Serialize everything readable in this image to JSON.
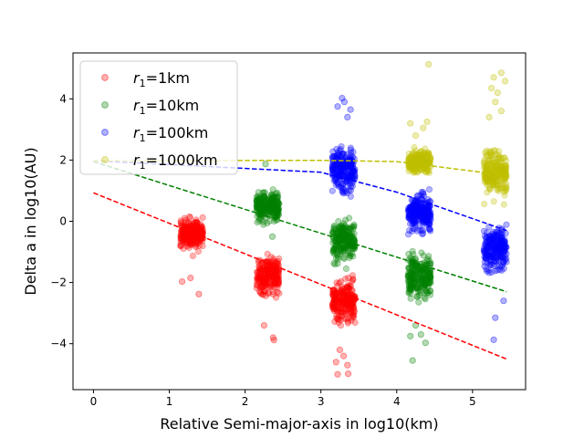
{
  "chart_data": {
    "type": "scatter",
    "title": "",
    "xlabel": "Relative Semi-major-axis in log10(km)",
    "ylabel": "Delta a in log10(AU)",
    "xlim": [
      -0.27,
      5.7
    ],
    "ylim": [
      -5.5,
      5.5
    ],
    "xticks": [
      0,
      1,
      2,
      3,
      4,
      5
    ],
    "yticks": [
      -4,
      -2,
      0,
      2,
      4
    ],
    "legend_position": "top-left",
    "series": [
      {
        "name": "r1=1km",
        "label_base": "r",
        "label_sub": "1",
        "label_rest": "=1km",
        "color": "#ff0000",
        "clusters": [
          {
            "x": 1.3,
            "center": -0.4,
            "core_low": -1.2,
            "core_high": 0.4
          },
          {
            "x": 2.3,
            "center": -1.8,
            "core_low": -2.8,
            "core_high": -0.7
          },
          {
            "x": 3.3,
            "center": -2.6,
            "core_low": -3.6,
            "core_high": -1.5
          }
        ],
        "outliers": [
          {
            "x": 1.17,
            "y": -1.97
          },
          {
            "x": 1.39,
            "y": -2.38
          },
          {
            "x": 1.28,
            "y": -1.85
          },
          {
            "x": 2.37,
            "y": -3.8
          },
          {
            "x": 2.38,
            "y": -3.88
          },
          {
            "x": 2.25,
            "y": -3.4
          },
          {
            "x": 3.22,
            "y": -5.0
          },
          {
            "x": 3.36,
            "y": -4.98
          },
          {
            "x": 3.2,
            "y": -4.6
          },
          {
            "x": 3.3,
            "y": -4.4
          },
          {
            "x": 3.35,
            "y": -4.7
          },
          {
            "x": 3.25,
            "y": -4.2
          }
        ],
        "trend": [
          {
            "x": 0.0,
            "y": 0.93
          },
          {
            "x": 5.45,
            "y": -4.5
          }
        ]
      },
      {
        "name": "r1=10km",
        "label_base": "r",
        "label_sub": "1",
        "label_rest": "=10km",
        "color": "#008000",
        "clusters": [
          {
            "x": 2.3,
            "center": 0.5,
            "core_low": -0.3,
            "core_high": 1.3
          },
          {
            "x": 3.3,
            "center": -0.6,
            "core_low": -1.6,
            "core_high": 0.4
          },
          {
            "x": 4.3,
            "center": -1.8,
            "core_low": -2.9,
            "core_high": -0.7
          }
        ],
        "outliers": [
          {
            "x": 2.27,
            "y": 1.87
          },
          {
            "x": 2.36,
            "y": -0.5
          },
          {
            "x": 4.21,
            "y": -4.55
          },
          {
            "x": 4.38,
            "y": -3.97
          },
          {
            "x": 4.18,
            "y": -3.75
          },
          {
            "x": 4.32,
            "y": -3.7
          },
          {
            "x": 4.25,
            "y": -3.4
          },
          {
            "x": 4.35,
            "y": 0.0
          }
        ],
        "trend": [
          {
            "x": 0.0,
            "y": 1.95
          },
          {
            "x": 5.45,
            "y": -2.3
          }
        ]
      },
      {
        "name": "r1=100km",
        "label_base": "r",
        "label_sub": "1",
        "label_rest": "=100km",
        "color": "#0000ff",
        "clusters": [
          {
            "x": 3.3,
            "center": 1.7,
            "core_low": 0.6,
            "core_high": 2.9
          },
          {
            "x": 4.3,
            "center": 0.3,
            "core_low": -0.6,
            "core_high": 1.3
          },
          {
            "x": 5.3,
            "center": -0.9,
            "core_low": -2.0,
            "core_high": 0.2
          }
        ],
        "outliers": [
          {
            "x": 3.28,
            "y": 4.02
          },
          {
            "x": 3.31,
            "y": 3.9
          },
          {
            "x": 3.22,
            "y": 3.75
          },
          {
            "x": 3.39,
            "y": 3.65
          },
          {
            "x": 3.35,
            "y": 3.4
          },
          {
            "x": 5.3,
            "y": -3.15
          },
          {
            "x": 5.28,
            "y": -3.87
          },
          {
            "x": 5.41,
            "y": -2.6
          },
          {
            "x": 4.35,
            "y": 0.9
          }
        ],
        "trend": [
          {
            "x": 0.0,
            "y": 1.98
          },
          {
            "x": 3.0,
            "y": 1.6
          },
          {
            "x": 4.0,
            "y": 0.95
          },
          {
            "x": 5.45,
            "y": -0.3
          }
        ]
      },
      {
        "name": "r1=1000km",
        "label_base": "r",
        "label_sub": "1",
        "label_rest": "=1000km",
        "color": "#bfbf00",
        "clusters": [
          {
            "x": 4.3,
            "center": 1.95,
            "core_low": 1.4,
            "core_high": 2.5
          },
          {
            "x": 5.3,
            "center": 1.6,
            "core_low": 0.4,
            "core_high": 2.8
          }
        ],
        "outliers": [
          {
            "x": 4.42,
            "y": 5.13
          },
          {
            "x": 4.18,
            "y": 3.2
          },
          {
            "x": 4.35,
            "y": 3.05
          },
          {
            "x": 4.25,
            "y": 2.8
          },
          {
            "x": 4.4,
            "y": 3.25
          },
          {
            "x": 5.38,
            "y": 4.85
          },
          {
            "x": 5.28,
            "y": 4.7
          },
          {
            "x": 5.43,
            "y": 4.58
          },
          {
            "x": 5.25,
            "y": 4.35
          },
          {
            "x": 5.33,
            "y": 4.2
          },
          {
            "x": 5.3,
            "y": 3.9
          },
          {
            "x": 5.22,
            "y": 3.4
          },
          {
            "x": 5.38,
            "y": 3.6
          }
        ],
        "trend": [
          {
            "x": 0.0,
            "y": 1.98
          },
          {
            "x": 3.0,
            "y": 1.99
          },
          {
            "x": 4.0,
            "y": 1.95
          },
          {
            "x": 5.45,
            "y": 1.5
          }
        ]
      }
    ]
  }
}
